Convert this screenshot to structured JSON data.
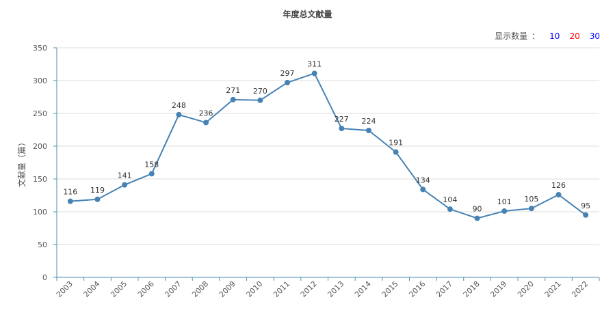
{
  "header": {
    "title": "年度总文献量",
    "count_label": "显示数量",
    "count_colon": "：",
    "count_options": [
      {
        "label": "10",
        "color": "#0000ff"
      },
      {
        "label": "20",
        "color": "#ff0000"
      },
      {
        "label": "30",
        "color": "#0000ff"
      }
    ]
  },
  "chart_data": {
    "type": "line",
    "title": "年度总文献量",
    "ylabel": "文献量（篇）",
    "xlabel": "",
    "ylim": [
      0,
      350
    ],
    "yticks": [
      0,
      50,
      100,
      150,
      200,
      250,
      300,
      350
    ],
    "grid": true,
    "line_color": "#4682b4",
    "categories": [
      "2003",
      "2004",
      "2005",
      "2006",
      "2007",
      "2008",
      "2009",
      "2010",
      "2011",
      "2012",
      "2013",
      "2014",
      "2015",
      "2016",
      "2017",
      "2018",
      "2019",
      "2020",
      "2021",
      "2022"
    ],
    "values": [
      116,
      119,
      141,
      158,
      248,
      236,
      271,
      270,
      297,
      311,
      227,
      224,
      191,
      134,
      104,
      90,
      101,
      105,
      126,
      95
    ]
  }
}
